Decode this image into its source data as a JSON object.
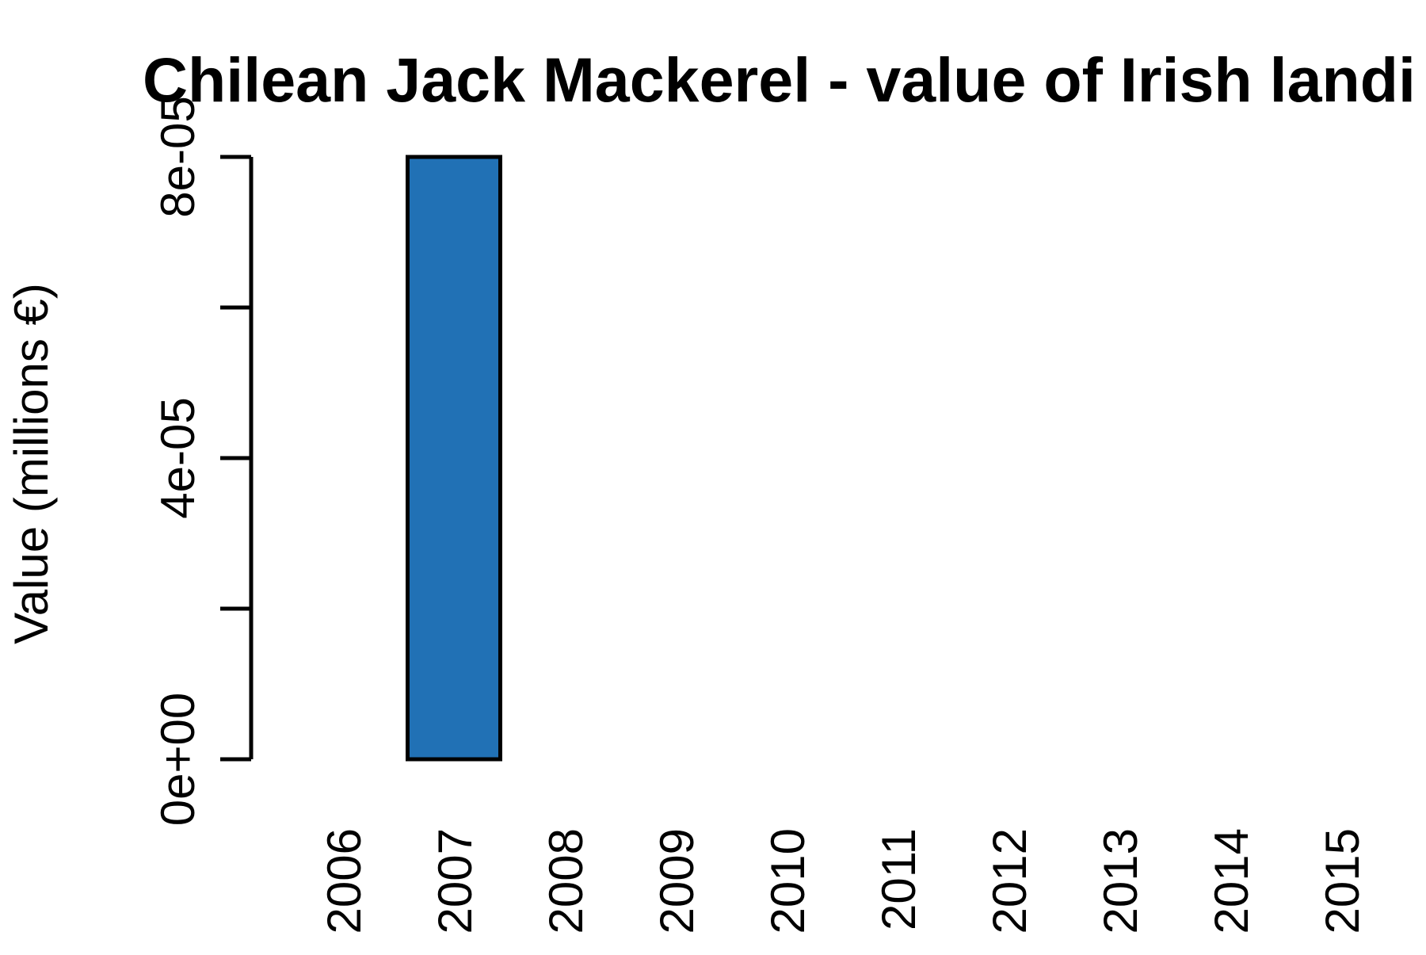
{
  "chart_data": {
    "type": "bar",
    "title": "Chilean Jack Mackerel - value of Irish landi",
    "xlabel": "",
    "ylabel": "Value (millions €)",
    "categories": [
      "2006",
      "2007",
      "2008",
      "2009",
      "2010",
      "2011",
      "2012",
      "2013",
      "2014",
      "2015"
    ],
    "values": [
      0,
      8e-05,
      0,
      0,
      0,
      0,
      0,
      0,
      0,
      0
    ],
    "ylim": [
      0,
      8e-05
    ],
    "y_ticks": [
      0,
      2e-05,
      4e-05,
      6e-05,
      8e-05
    ],
    "y_tick_labels": [
      "0e+00",
      "",
      "4e-05",
      "",
      "8e-05"
    ],
    "bar_color": "#2171b5",
    "grid": false,
    "legend": "none"
  }
}
